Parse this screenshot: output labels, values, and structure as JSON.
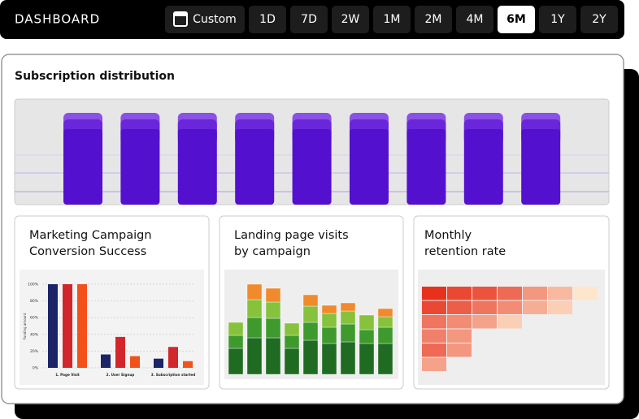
{
  "header": {
    "title": "DASHBOARD",
    "ranges": [
      "Custom",
      "1D",
      "7D",
      "2W",
      "1M",
      "2M",
      "4M",
      "6M",
      "1Y",
      "2Y"
    ],
    "selected_index": 7
  },
  "subscription": {
    "title": "Subscription distribution",
    "chart_data": {
      "type": "bar",
      "values": [
        100,
        100,
        100,
        100,
        100,
        100,
        100,
        100,
        100
      ],
      "ylim": [
        0,
        100
      ],
      "color": "#5410cf"
    }
  },
  "cards": [
    {
      "title_lines": [
        "Marketing Campaign",
        "Conversion Success"
      ],
      "chart_data": {
        "type": "grouped-bar",
        "y_label": "Funding amount",
        "categories": [
          "1. Page Visit",
          "2. User Signup",
          "3. Subscription started"
        ],
        "series": [
          {
            "color": "#1b2466",
            "values": [
              100,
              16,
              11
            ]
          },
          {
            "color": "#d3262c",
            "values": [
              100,
              37,
              25
            ]
          },
          {
            "color": "#f2511b",
            "values": [
              100,
              14,
              8
            ]
          }
        ],
        "ylim": [
          0,
          100
        ],
        "yticks": [
          {
            "value": 0,
            "label": "0%"
          },
          {
            "value": 20,
            "label": "20%"
          },
          {
            "value": 40,
            "label": "40%"
          },
          {
            "value": 60,
            "label": "60%"
          },
          {
            "value": 80,
            "label": "80%"
          },
          {
            "value": 100,
            "label": "100%"
          }
        ]
      }
    },
    {
      "title_lines": [
        "Landing page visits",
        "by campaign"
      ],
      "chart_data": {
        "type": "stacked-bar",
        "series": [
          {
            "color": "#1f6b22",
            "values": [
              32,
              45,
              45,
              32,
              42,
              38,
              40,
              38,
              38
            ]
          },
          {
            "color": "#3f9a2e",
            "values": [
              16,
              25,
              24,
              16,
              22,
              20,
              22,
              17,
              20
            ]
          },
          {
            "color": "#86c23c",
            "values": [
              16,
              22,
              20,
              15,
              20,
              17,
              16,
              18,
              13
            ]
          },
          {
            "color": "#f08a2c",
            "values": [
              0,
              19,
              17,
              0,
              14,
              10,
              10,
              0,
              10
            ]
          }
        ],
        "ylim": [
          0,
          111
        ]
      }
    },
    {
      "title_lines": [
        "Monthly",
        "retention rate"
      ],
      "chart_data": {
        "type": "heatmap",
        "values": [
          [
            100,
            90,
            85,
            75,
            55,
            40,
            20
          ],
          [
            90,
            80,
            70,
            60,
            45,
            30
          ],
          [
            70,
            60,
            50,
            30
          ],
          [
            65,
            55
          ],
          [
            75,
            55
          ],
          [
            50
          ]
        ],
        "colors": [
          "#fde6cc",
          "#e8311d"
        ]
      }
    }
  ]
}
